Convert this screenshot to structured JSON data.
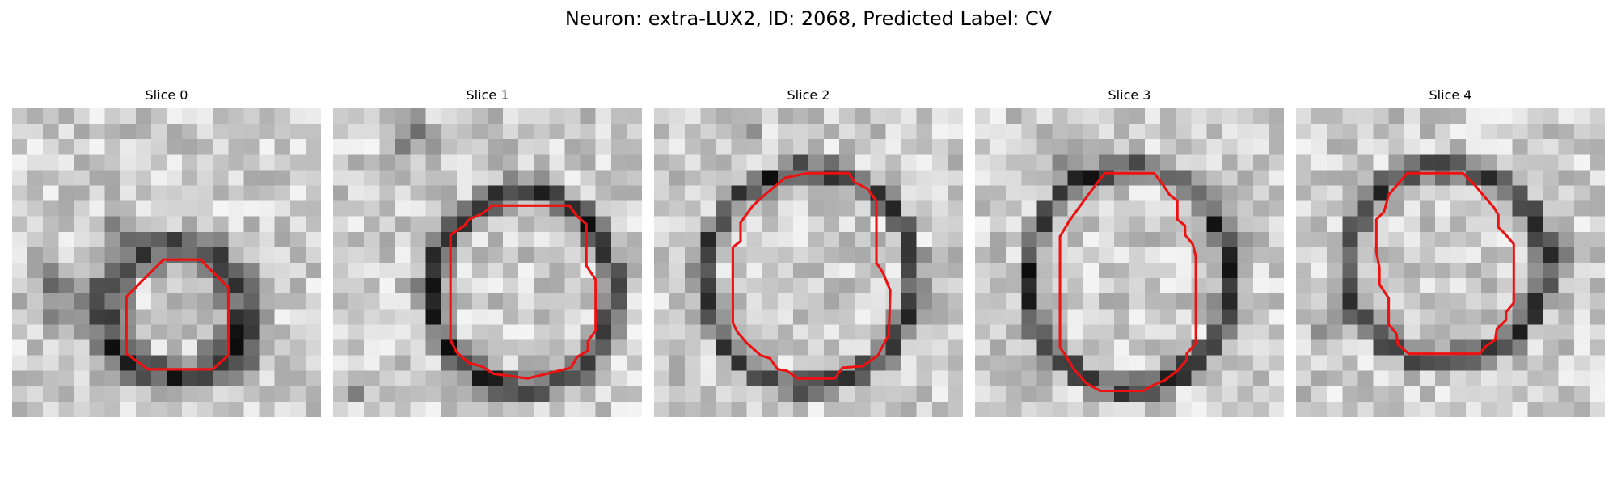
{
  "figure": {
    "title": "Neuron: extra-LUX2, ID: 2068, Predicted Label: CV",
    "contour_color": "#ee1111"
  },
  "slices": [
    {
      "title": "Slice 0",
      "contour": [
        [
          9.8,
          9.8
        ],
        [
          12.2,
          9.8
        ],
        [
          14,
          11.6
        ],
        [
          14,
          16
        ],
        [
          13,
          16.9
        ],
        [
          8.8,
          16.9
        ],
        [
          7.4,
          15.9
        ],
        [
          7.4,
          12.2
        ]
      ]
    },
    {
      "title": "Slice 1",
      "contour": [
        [
          10.3,
          6.3
        ],
        [
          15.3,
          6.3
        ],
        [
          15.8,
          7
        ],
        [
          16.4,
          7.5
        ],
        [
          16.4,
          10.2
        ],
        [
          17,
          11.1
        ],
        [
          17,
          14.4
        ],
        [
          16.5,
          15.1
        ],
        [
          16.5,
          15.7
        ],
        [
          15.8,
          16.1
        ],
        [
          15.4,
          16.8
        ],
        [
          12.6,
          17.5
        ],
        [
          10.4,
          17.2
        ],
        [
          9.6,
          16.7
        ],
        [
          8.8,
          16.5
        ],
        [
          8,
          15.8
        ],
        [
          7.6,
          15
        ],
        [
          7.6,
          8.2
        ],
        [
          8.5,
          7.6
        ],
        [
          8.8,
          7.2
        ],
        [
          9.7,
          6.8
        ]
      ]
    },
    {
      "title": "Slice 2",
      "contour": [
        [
          9.9,
          4.2
        ],
        [
          12.6,
          4.2
        ],
        [
          13,
          4.8
        ],
        [
          13.8,
          5.2
        ],
        [
          14.4,
          6
        ],
        [
          14.4,
          10
        ],
        [
          14.8,
          10.6
        ],
        [
          15.3,
          11.8
        ],
        [
          15.2,
          14.7
        ],
        [
          14.8,
          15.4
        ],
        [
          14.5,
          16
        ],
        [
          13.5,
          16.7
        ],
        [
          12.2,
          16.8
        ],
        [
          11.7,
          17.5
        ],
        [
          9.3,
          17.5
        ],
        [
          8.6,
          17
        ],
        [
          8,
          16.9
        ],
        [
          7.5,
          16.2
        ],
        [
          6.9,
          16
        ],
        [
          6,
          15.2
        ],
        [
          5.4,
          14.5
        ],
        [
          5.1,
          13.9
        ],
        [
          5.1,
          9
        ],
        [
          5.6,
          8.6
        ],
        [
          5.6,
          7.4
        ],
        [
          6.4,
          6.3
        ],
        [
          7.4,
          5.4
        ],
        [
          8.5,
          4.5
        ]
      ]
    },
    {
      "title": "Slice 3",
      "contour": [
        [
          8.4,
          4.2
        ],
        [
          11.6,
          4.2
        ],
        [
          12.2,
          5
        ],
        [
          12.6,
          5.6
        ],
        [
          13.1,
          6
        ],
        [
          13.1,
          7.2
        ],
        [
          13.6,
          7.6
        ],
        [
          13.6,
          8.2
        ],
        [
          14.1,
          8.8
        ],
        [
          14.3,
          9.6
        ],
        [
          14.3,
          15.2
        ],
        [
          13.7,
          15.9
        ],
        [
          13.7,
          16.3
        ],
        [
          13.1,
          17
        ],
        [
          12.3,
          17.6
        ],
        [
          11.6,
          17.9
        ],
        [
          10.9,
          18.3
        ],
        [
          8.1,
          18.3
        ],
        [
          7.2,
          17.8
        ],
        [
          6.4,
          16.9
        ],
        [
          5.8,
          15.9
        ],
        [
          5.5,
          15.5
        ],
        [
          5.5,
          8.3
        ],
        [
          6.1,
          7.3
        ],
        [
          7.4,
          5.5
        ]
      ]
    },
    {
      "title": "Slice 4",
      "contour": [
        [
          7.2,
          4.2
        ],
        [
          10.8,
          4.2
        ],
        [
          11.6,
          5
        ],
        [
          12.1,
          5.6
        ],
        [
          12.8,
          6.4
        ],
        [
          13.1,
          6.9
        ],
        [
          13.1,
          7.7
        ],
        [
          13.6,
          8.2
        ],
        [
          14.1,
          8.8
        ],
        [
          14.1,
          12.6
        ],
        [
          13.6,
          13.2
        ],
        [
          13.6,
          13.7
        ],
        [
          13,
          14.3
        ],
        [
          12.9,
          15
        ],
        [
          12.3,
          15.4
        ],
        [
          11.9,
          15.9
        ],
        [
          7.3,
          15.9
        ],
        [
          6.6,
          15.3
        ],
        [
          6.5,
          14.6
        ],
        [
          6,
          14
        ],
        [
          6,
          12.3
        ],
        [
          5.4,
          11.4
        ],
        [
          5.4,
          10.3
        ],
        [
          5.2,
          9.3
        ],
        [
          5.2,
          7.2
        ],
        [
          5.7,
          6.7
        ],
        [
          6,
          5.6
        ]
      ]
    }
  ]
}
